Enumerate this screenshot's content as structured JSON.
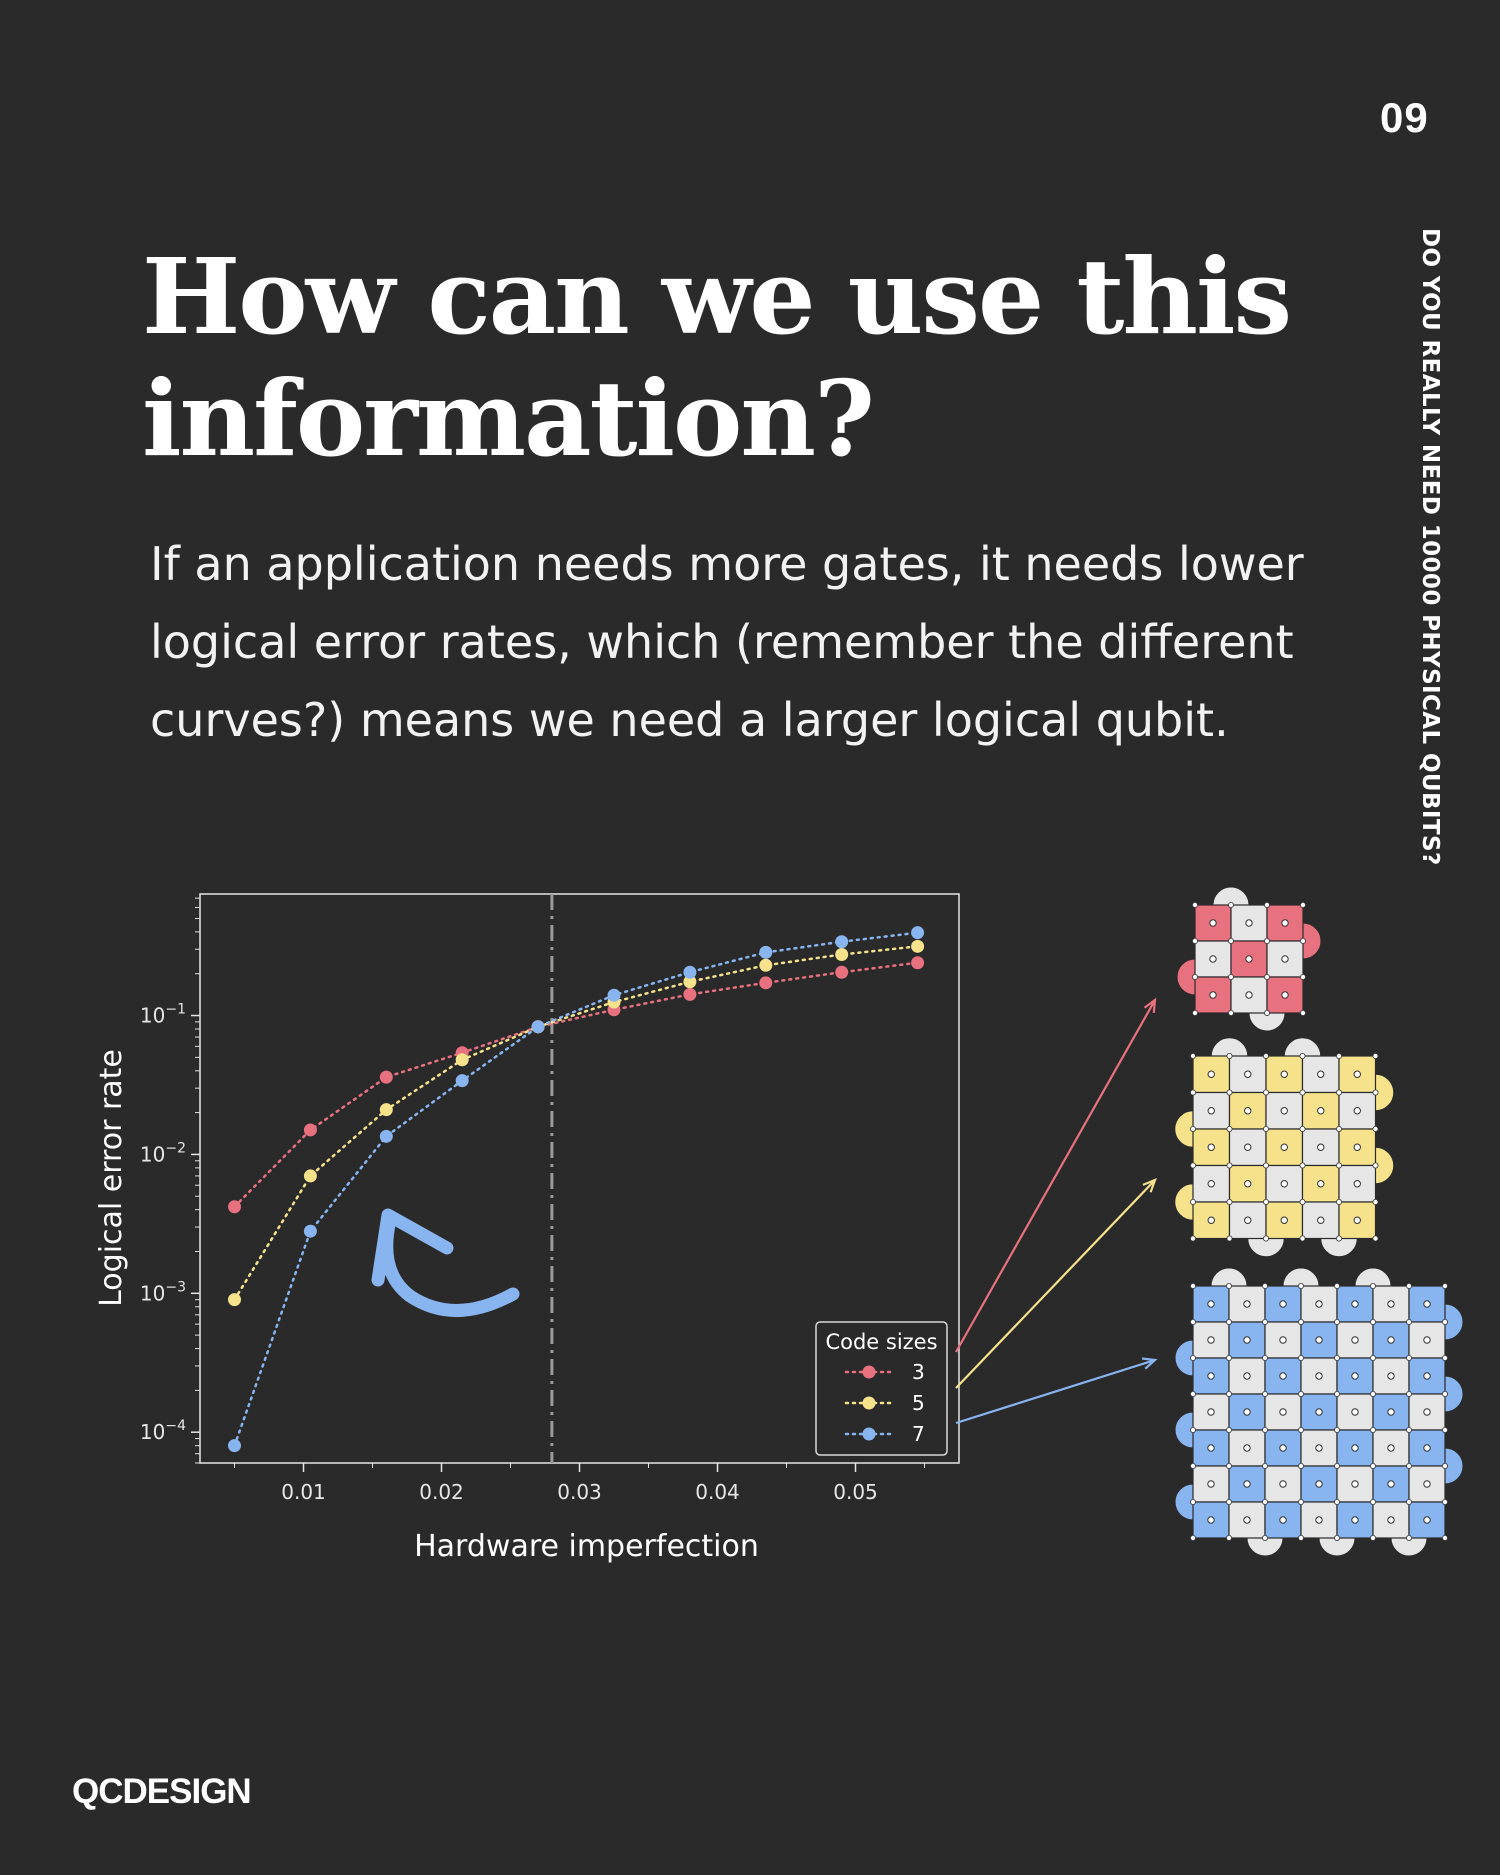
{
  "page_number": "09",
  "series_title": "DO YOU REALLY NEED 10000 PHYSICAL QUBITS?",
  "headline": "How can we use this information?",
  "body_text": "If an application needs more gates, it needs lower logical error rates, which (remember the different curves?) means we need a larger logical qubit.",
  "logo": "QCDESIGN",
  "colors": {
    "background": "#2a2a2b",
    "code3": "#e8717f",
    "code5": "#f5e28a",
    "code7": "#88b4ef",
    "plaquette_neutral": "#e6e6e6"
  },
  "chart_data": {
    "type": "line",
    "xlabel": "Hardware imperfection",
    "ylabel": "Logical error rate",
    "xlim": [
      0.0025,
      0.0575
    ],
    "ylim": [
      6e-05,
      0.75
    ],
    "yscale": "log",
    "xticks": [
      0.01,
      0.02,
      0.03,
      0.04,
      0.05
    ],
    "xtick_labels": [
      "0.01",
      "0.02",
      "0.03",
      "0.04",
      "0.05"
    ],
    "yticks": [
      0.0001,
      0.001,
      0.01,
      0.1
    ],
    "ytick_labels": [
      {
        "base": "10",
        "exp": "−4"
      },
      {
        "base": "10",
        "exp": "−3"
      },
      {
        "base": "10",
        "exp": "−2"
      },
      {
        "base": "10",
        "exp": "−1"
      }
    ],
    "threshold_x": 0.028,
    "grid": false,
    "legend": {
      "title": "Code sizes",
      "position": "lower-right"
    },
    "annotation": "curved arrow pointing up-left toward lower hardware imperfection",
    "x": [
      0.005,
      0.0105,
      0.016,
      0.0215,
      0.027,
      0.0325,
      0.038,
      0.0435,
      0.049,
      0.0545
    ],
    "series": [
      {
        "name": "3",
        "color": "#e8717f",
        "values": [
          0.0042,
          0.015,
          0.036,
          0.054,
          0.083,
          0.11,
          0.142,
          0.172,
          0.205,
          0.24
        ]
      },
      {
        "name": "5",
        "color": "#f5e28a",
        "values": [
          0.0009,
          0.007,
          0.021,
          0.048,
          0.083,
          0.125,
          0.175,
          0.23,
          0.275,
          0.315
        ]
      },
      {
        "name": "7",
        "color": "#88b4ef",
        "values": [
          8e-05,
          0.0028,
          0.0135,
          0.034,
          0.083,
          0.14,
          0.205,
          0.285,
          0.34,
          0.395
        ]
      }
    ]
  },
  "lattices": [
    {
      "size": 3,
      "color": "#e8717f"
    },
    {
      "size": 5,
      "color": "#f5e28a"
    },
    {
      "size": 7,
      "color": "#88b4ef"
    }
  ]
}
